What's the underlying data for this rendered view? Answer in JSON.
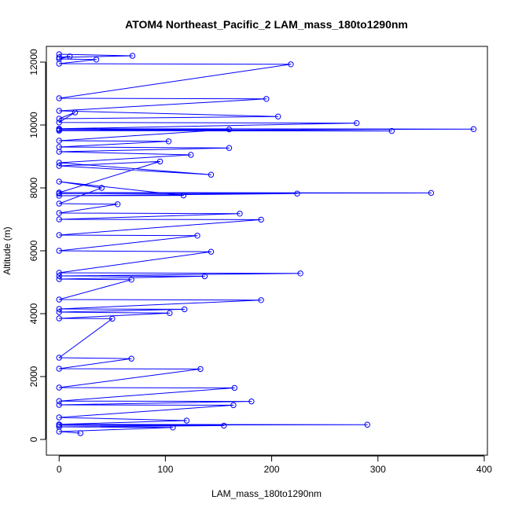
{
  "chart_data": {
    "type": "scatter",
    "title": "ATOM4 Northeast_Pacific_2 LAM_mass_180to1290nm",
    "xlabel": "LAM_mass_180to1290nm",
    "ylabel": "Altitude (m)",
    "xlim": [
      -12,
      403
    ],
    "ylim": [
      -500,
      12500
    ],
    "xticks": [
      0,
      100,
      200,
      300,
      400
    ],
    "yticks": [
      0,
      2000,
      4000,
      6000,
      8000,
      10000,
      12000
    ],
    "grid": false,
    "legend": "none",
    "series_color": "#0000ff",
    "series": [
      {
        "x": [
          0,
          69,
          0,
          10,
          0,
          35,
          0,
          218,
          0,
          195,
          0,
          206,
          0,
          15,
          0,
          280,
          0,
          390,
          0,
          313,
          0,
          160,
          0,
          103,
          0,
          160,
          0,
          124,
          0,
          143,
          0,
          95,
          0,
          350,
          0,
          224,
          0,
          117,
          0,
          40,
          0,
          55,
          0,
          170,
          0,
          190,
          0,
          130,
          0,
          143,
          0,
          227,
          0,
          137,
          0,
          68,
          0,
          190,
          0,
          118,
          0,
          104,
          0,
          50,
          0,
          68,
          0,
          133,
          0,
          165,
          0,
          181,
          0,
          164,
          0,
          120,
          0,
          290,
          0,
          155,
          0,
          107,
          0,
          20
        ],
        "y": [
          12250,
          12200,
          12150,
          12180,
          12100,
          12080,
          11950,
          11930,
          10850,
          10830,
          10450,
          10270,
          10200,
          10400,
          10080,
          10060,
          9880,
          9870,
          9820,
          9810,
          9850,
          9860,
          9500,
          9480,
          9300,
          9270,
          9150,
          9050,
          8800,
          8420,
          8700,
          8840,
          7850,
          7840,
          7820,
          7820,
          7750,
          7760,
          8200,
          8000,
          7500,
          7480,
          7200,
          7180,
          7000,
          6990,
          6500,
          6480,
          6000,
          5970,
          5300,
          5280,
          5200,
          5190,
          5100,
          5080,
          4450,
          4430,
          4150,
          4140,
          4050,
          4020,
          3850,
          3840,
          2600,
          2570,
          2250,
          2240,
          1650,
          1640,
          1220,
          1210,
          1100,
          1090,
          700,
          600,
          480,
          470,
          450,
          440,
          400,
          380,
          250,
          200
        ]
      }
    ]
  }
}
